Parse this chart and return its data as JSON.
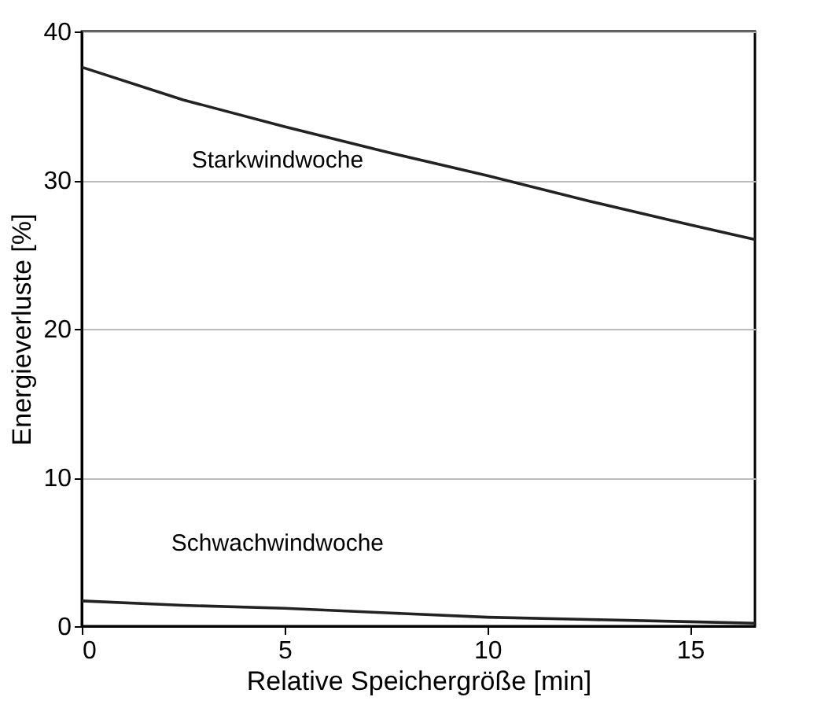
{
  "chart_data": {
    "type": "line",
    "xlabel": "Relative Speichergröße [min]",
    "ylabel": "Energieverluste [%]",
    "x": [
      0,
      2.5,
      5,
      7.5,
      10,
      12.5,
      15,
      16.6
    ],
    "series": [
      {
        "name": "Starkwindwoche",
        "color": "#222222",
        "values": [
          37.6,
          35.4,
          33.6,
          31.9,
          30.3,
          28.6,
          27.0,
          26.0
        ]
      },
      {
        "name": "Schwachwindwoche",
        "color": "#222222",
        "values": [
          1.7,
          1.4,
          1.2,
          0.9,
          0.6,
          0.45,
          0.3,
          0.2
        ]
      }
    ],
    "xlim": [
      0,
      16.6
    ],
    "xticks": [
      0,
      5,
      10,
      15
    ],
    "ylim": [
      0,
      40
    ],
    "yticks": [
      0,
      10,
      20,
      30,
      40
    ],
    "grid": "y",
    "legend": false,
    "marker": "none",
    "line_style": "solid"
  }
}
